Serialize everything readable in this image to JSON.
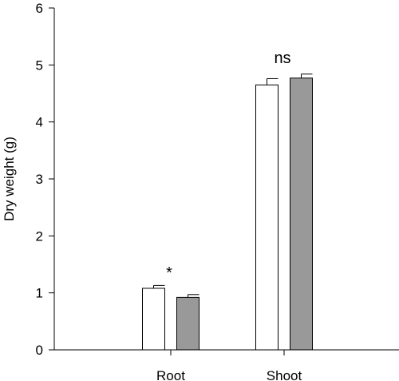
{
  "chart_data": {
    "type": "bar",
    "title": "",
    "xlabel": "",
    "ylabel": "Dry weight (g)",
    "ylim": [
      0,
      6
    ],
    "yticks": [
      0,
      1,
      2,
      3,
      4,
      5,
      6
    ],
    "grid": false,
    "categories": [
      "Root",
      "Shoot"
    ],
    "series": [
      {
        "fill": "#ffffff",
        "values": [
          1.08,
          4.65
        ],
        "errors": [
          0.05,
          0.11
        ]
      },
      {
        "fill": "#999999",
        "values": [
          0.92,
          4.77
        ],
        "errors": [
          0.05,
          0.07
        ]
      }
    ],
    "annotations": [
      "*",
      "ns"
    ]
  }
}
